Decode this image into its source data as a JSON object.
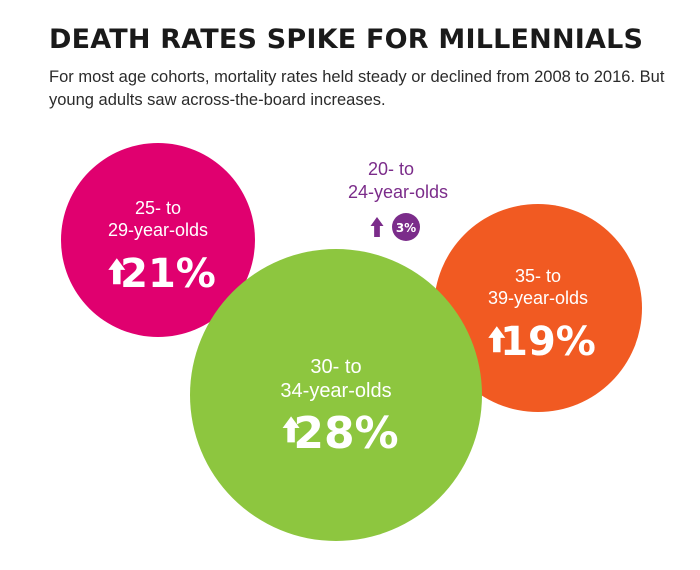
{
  "title": "DEATH RATES SPIKE FOR MILLENNIALS",
  "subtitle": "For most age cohorts, mortality rates held steady or declined from 2008 to 2016. But young adults saw across-the-board increases.",
  "chart_data": {
    "type": "bubble",
    "metric": "change in mortality rate, 2008 to 2016",
    "series": [
      {
        "label_line1": "25- to",
        "label_line2": "29-year-olds",
        "change_pct": 21,
        "display": "21%",
        "direction": "up",
        "color": "#e0006f"
      },
      {
        "label_line1": "30- to",
        "label_line2": "34-year-olds",
        "change_pct": 28,
        "display": "28%",
        "direction": "up",
        "color": "#8dc63f"
      },
      {
        "label_line1": "35- to",
        "label_line2": "39-year-olds",
        "change_pct": 19,
        "display": "19%",
        "direction": "up",
        "color": "#f15a22"
      },
      {
        "label_line1": "20- to",
        "label_line2": "24-year-olds",
        "change_pct": 3,
        "display": "3%",
        "direction": "up",
        "color": "#7b2c8a"
      }
    ]
  }
}
